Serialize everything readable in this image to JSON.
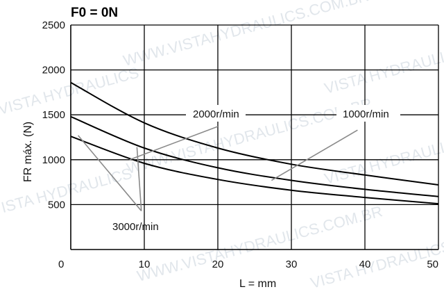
{
  "chart_data": {
    "type": "line",
    "title": "F0 = 0N",
    "xlabel": "L = mm",
    "ylabel": "FR máx. (N)",
    "xlim": [
      0,
      50
    ],
    "ylim": [
      0,
      2500
    ],
    "xticks": [
      "0",
      "10",
      "20",
      "30",
      "40",
      "50"
    ],
    "yticks": [
      "500",
      "1000",
      "1500",
      "2000",
      "2500"
    ],
    "grid": true,
    "series": [
      {
        "name": "1000r/min",
        "x": [
          0,
          10,
          20,
          30,
          40,
          50
        ],
        "y": [
          1860,
          1410,
          1130,
          950,
          830,
          720
        ]
      },
      {
        "name": "2000r/min",
        "x": [
          0,
          10,
          20,
          30,
          40,
          50
        ],
        "y": [
          1480,
          1130,
          910,
          770,
          670,
          590
        ]
      },
      {
        "name": "3000r/min",
        "x": [
          0,
          10,
          20,
          30,
          40,
          50
        ],
        "y": [
          1260,
          960,
          780,
          660,
          580,
          510
        ]
      }
    ],
    "annotations": [
      {
        "text": "2000r/min",
        "series": "2000r/min"
      },
      {
        "text": "1000r/min",
        "series": "1000r/min"
      },
      {
        "text": "3000r/min",
        "series": "3000r/min"
      }
    ]
  },
  "watermark": {
    "text_a": "WWW.VISTAHYDRAULICS.COM.BR",
    "text_b": "VISTA HYDRAULICS",
    "color": "#c9d3dc"
  }
}
